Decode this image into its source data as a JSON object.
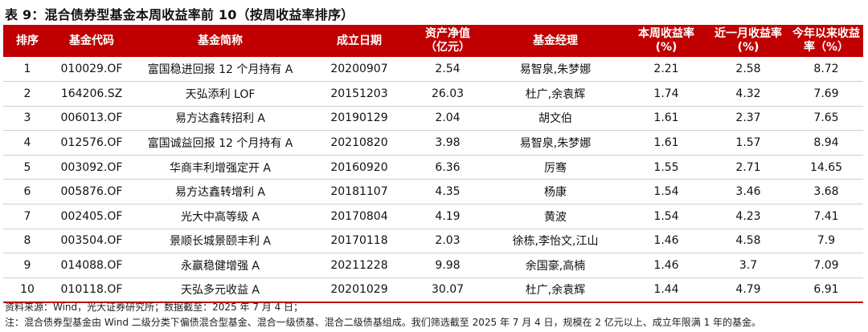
{
  "title": "表 9：混合债券型基金本周收益率前 10（按周收益率排序）",
  "columns": [
    {
      "l1": "排序",
      "l2": ""
    },
    {
      "l1": "基金代码",
      "l2": ""
    },
    {
      "l1": "基金简称",
      "l2": ""
    },
    {
      "l1": "成立日期",
      "l2": ""
    },
    {
      "l1": "资产净值",
      "l2": "（亿元）"
    },
    {
      "l1": "基金经理",
      "l2": ""
    },
    {
      "l1": "本周收益率",
      "l2": "(%)"
    },
    {
      "l1": "近一月收益率",
      "l2": "(%)"
    },
    {
      "l1": "今年以来收益",
      "l2": "率（%）"
    }
  ],
  "rows": [
    [
      "1",
      "010029.OF",
      "富国稳进回报 12 个月持有 A",
      "20200907",
      "2.54",
      "易智泉,朱梦娜",
      "2.21",
      "2.58",
      "8.72"
    ],
    [
      "2",
      "164206.SZ",
      "天弘添利 LOF",
      "20151203",
      "26.03",
      "杜广,余袁辉",
      "1.74",
      "4.32",
      "7.69"
    ],
    [
      "3",
      "006013.OF",
      "易方达鑫转招利 A",
      "20190129",
      "2.04",
      "胡文伯",
      "1.61",
      "2.37",
      "7.65"
    ],
    [
      "4",
      "012576.OF",
      "富国诚益回报 12 个月持有 A",
      "20210820",
      "3.98",
      "易智泉,朱梦娜",
      "1.61",
      "1.57",
      "8.94"
    ],
    [
      "5",
      "003092.OF",
      "华商丰利增强定开 A",
      "20160920",
      "6.36",
      "厉骞",
      "1.55",
      "2.71",
      "14.65"
    ],
    [
      "6",
      "005876.OF",
      "易方达鑫转增利 A",
      "20181107",
      "4.35",
      "杨康",
      "1.54",
      "3.46",
      "3.68"
    ],
    [
      "7",
      "002405.OF",
      "光大中高等级 A",
      "20170804",
      "4.19",
      "黄波",
      "1.54",
      "4.23",
      "7.41"
    ],
    [
      "8",
      "003504.OF",
      "景顺长城景颐丰利 A",
      "20170118",
      "2.03",
      "徐栋,李怡文,江山",
      "1.46",
      "4.58",
      "7.9"
    ],
    [
      "9",
      "014088.OF",
      "永赢稳健增强 A",
      "20211228",
      "9.98",
      "余国豪,高楠",
      "1.46",
      "3.7",
      "7.09"
    ],
    [
      "10",
      "010118.OF",
      "天弘多元收益 A",
      "20201029",
      "30.07",
      "杜广,余袁辉",
      "1.44",
      "4.79",
      "6.91"
    ]
  ],
  "source": "资料来源：Wind，光大证券研究所；数据截至：2025 年 7 月 4 日；",
  "note": "注：混合债券型基金由 Wind 二级分类下偏债混合型基金、混合一级债基、混合二级债基组成。我们筛选截至 2025 年 7 月 4 日，规模在 2 亿元以上、成立年限满 1 年的基金。"
}
